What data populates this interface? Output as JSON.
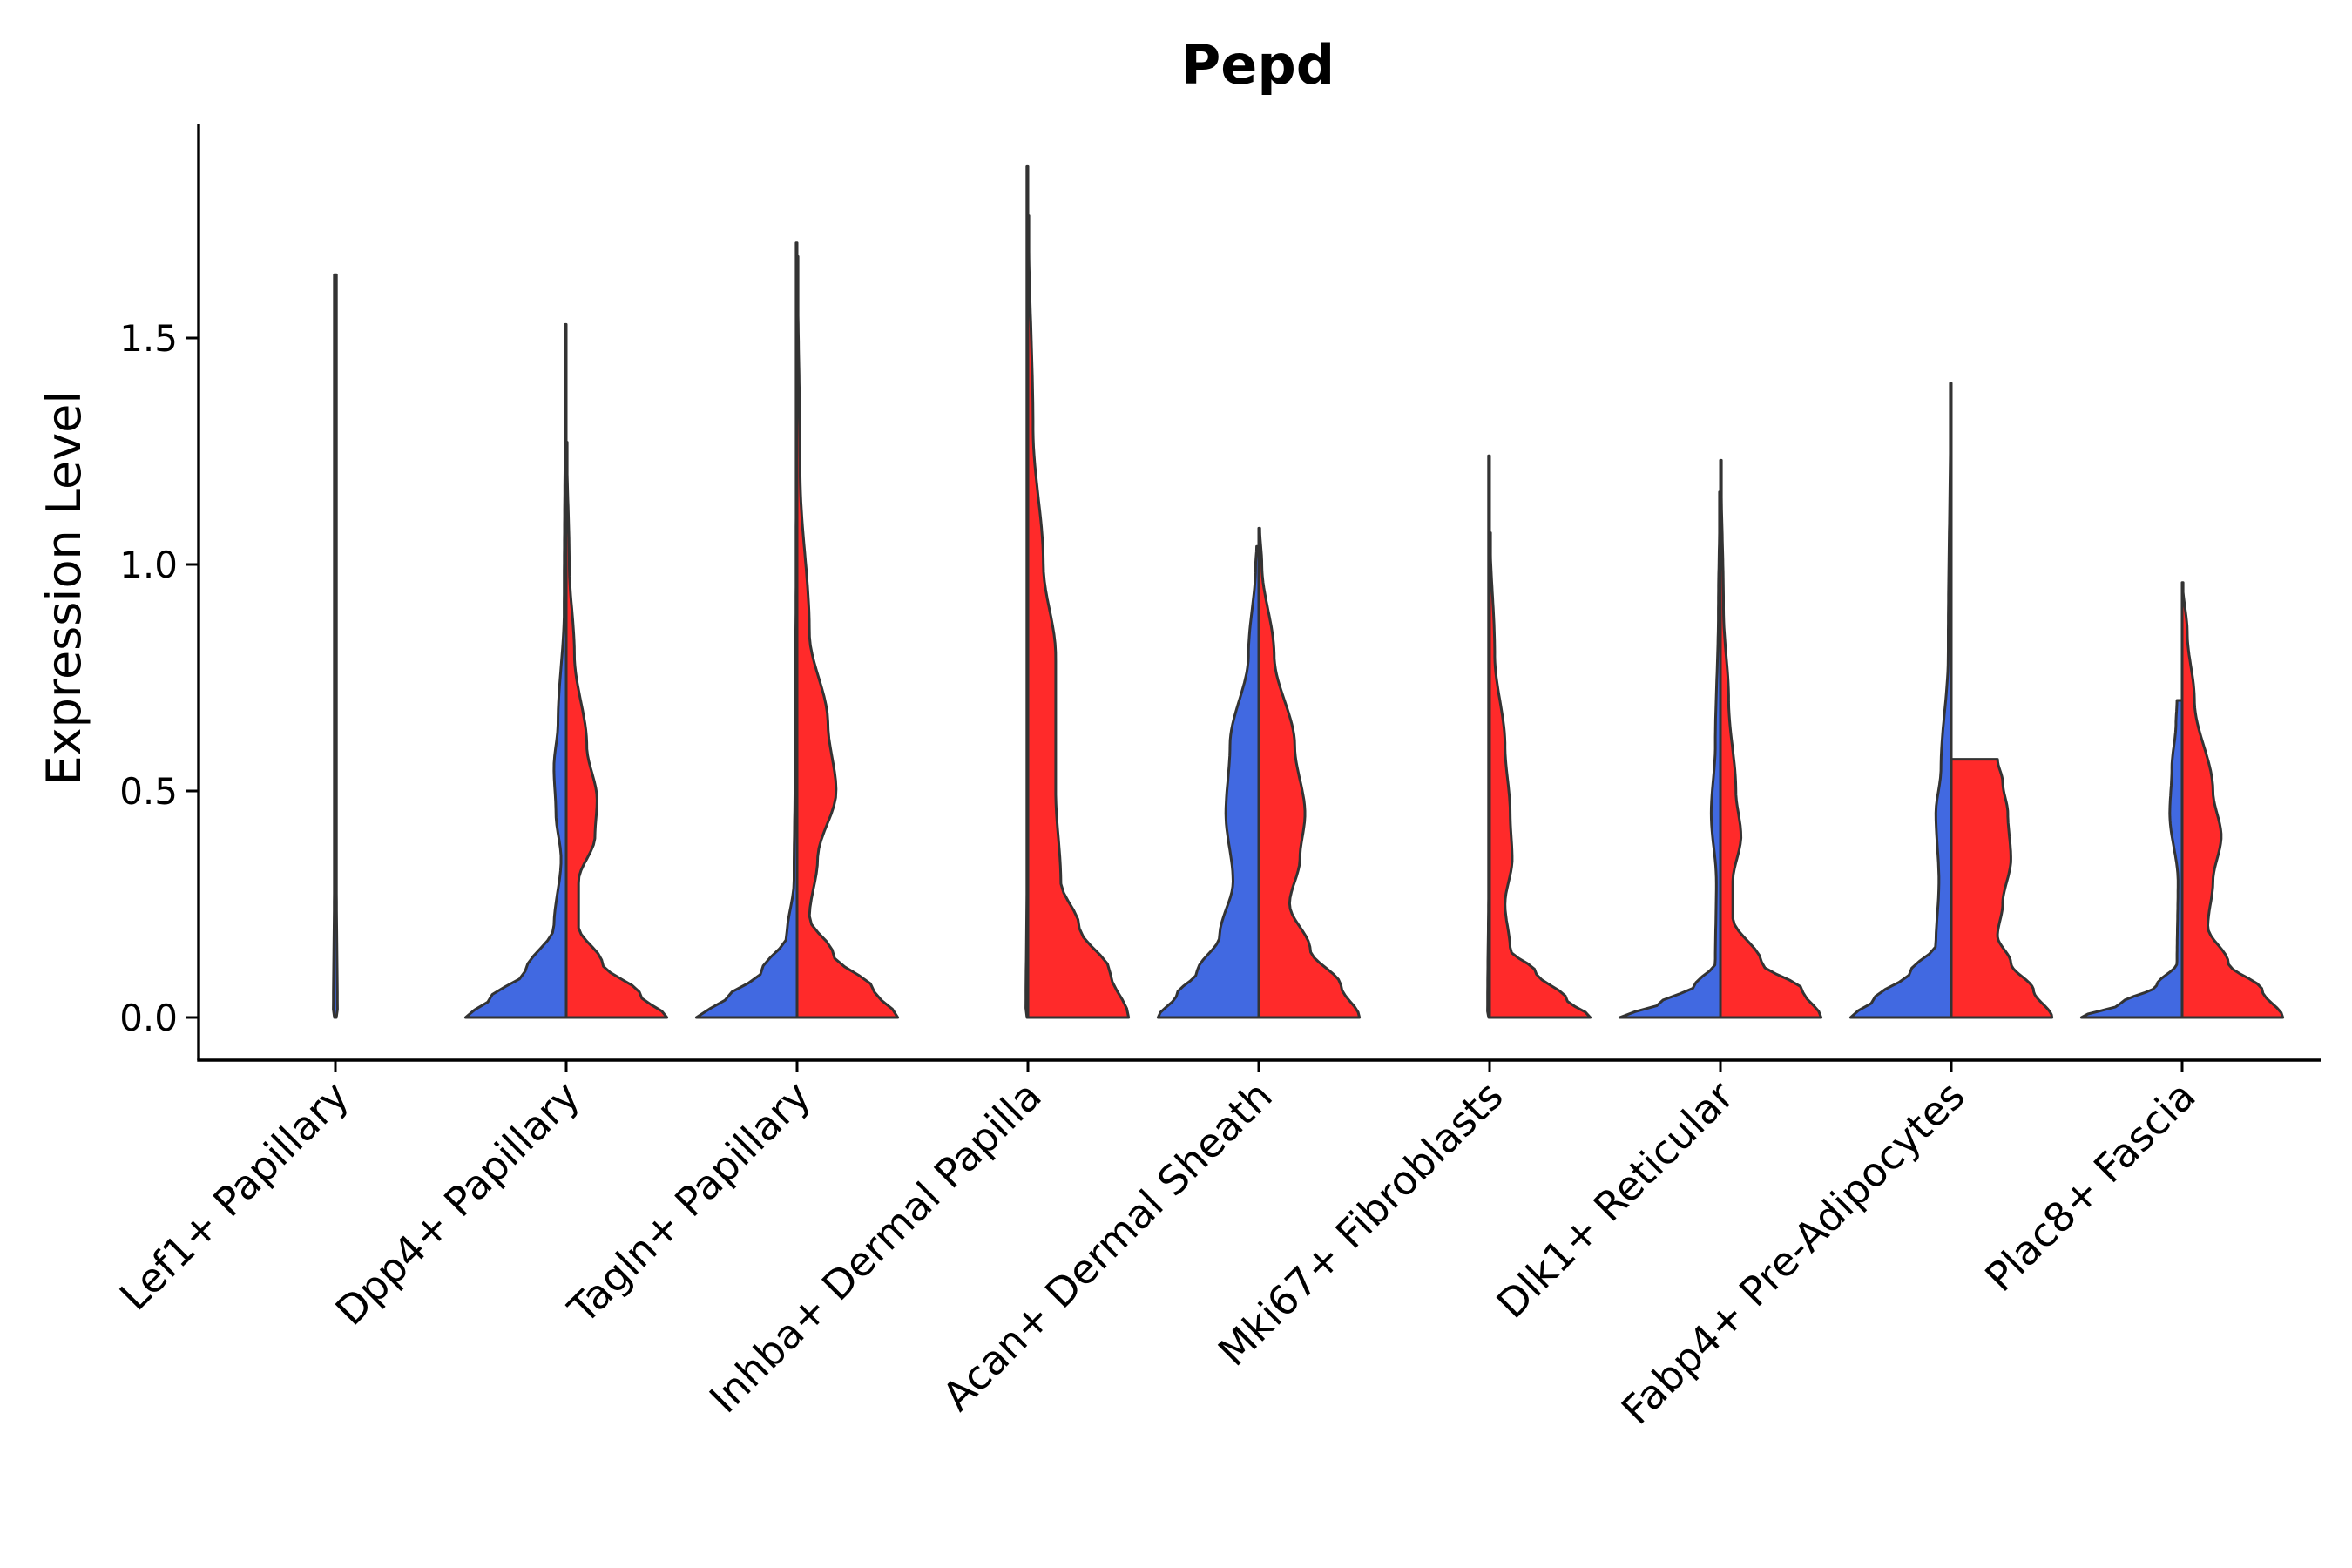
{
  "chart_data": {
    "type": "violin",
    "title": "Pepd",
    "xlabel": "",
    "ylabel": "Expression Level",
    "ylim": [
      -0.09,
      1.96
    ],
    "yticks": [
      0.0,
      0.5,
      1.0,
      1.5
    ],
    "ytick_labels": [
      "0.0",
      "0.5",
      "1.0",
      "1.5"
    ],
    "grid": false,
    "legend": "none",
    "colors": {
      "group1": "#4169e1",
      "group2": "#ff2a2a",
      "outline": "#333333"
    },
    "categories": [
      "Lef1+ Papillary",
      "Dpp4+ Papillary",
      "Tagln+ Papillary",
      "Inhba+ Dermal Papilla",
      "Acan+ Dermal Sheath",
      "Mki67+ Fibroblasts",
      "Dlk1+ Reticular",
      "Fabp4+ Pre-Adipocytes",
      "Plac8+ Fascia"
    ],
    "series": [
      {
        "name": "group1",
        "color": "#4169e1",
        "violins": [
          {
            "max": 1.64,
            "shape": [
              [
                0.0,
                0.0
              ],
              [
                0.001,
                1.0
              ],
              [
                0.005,
                0.3
              ],
              [
                0.01,
                0.02
              ],
              [
                0.3,
                0.01
              ],
              [
                1.64,
                0.01
              ]
            ]
          },
          {
            "max": 1.53,
            "shape": [
              [
                0.0,
                0.98
              ],
              [
                0.04,
                0.75
              ],
              [
                0.1,
                0.4
              ],
              [
                0.2,
                0.12
              ],
              [
                0.35,
                0.05
              ],
              [
                0.45,
                0.1
              ],
              [
                0.55,
                0.12
              ],
              [
                0.65,
                0.08
              ],
              [
                0.9,
                0.02
              ],
              [
                1.53,
                0.005
              ]
            ]
          },
          {
            "max": 1.71,
            "shape": [
              [
                0.0,
                0.98
              ],
              [
                0.04,
                0.7
              ],
              [
                0.1,
                0.35
              ],
              [
                0.18,
                0.1
              ],
              [
                0.3,
                0.03
              ],
              [
                0.55,
                0.02
              ],
              [
                1.0,
                0.01
              ],
              [
                1.71,
                0.005
              ]
            ]
          },
          {
            "max": 1.88,
            "shape": [
              [
                0.0,
                0.0
              ],
              [
                0.001,
                1.0
              ],
              [
                0.005,
                0.3
              ],
              [
                0.01,
                0.02
              ],
              [
                0.3,
                0.01
              ],
              [
                1.88,
                0.01
              ]
            ]
          },
          {
            "max": 1.04,
            "shape": [
              [
                0.0,
                0.98
              ],
              [
                0.05,
                0.8
              ],
              [
                0.1,
                0.6
              ],
              [
                0.18,
                0.38
              ],
              [
                0.3,
                0.25
              ],
              [
                0.45,
                0.32
              ],
              [
                0.6,
                0.28
              ],
              [
                0.8,
                0.1
              ],
              [
                1.0,
                0.03
              ],
              [
                1.04,
                0.02
              ]
            ]
          },
          {
            "max": 1.24,
            "shape": [
              [
                0.0,
                0.0
              ],
              [
                0.001,
                1.0
              ],
              [
                0.005,
                0.3
              ],
              [
                0.01,
                0.02
              ],
              [
                0.3,
                0.01
              ],
              [
                1.24,
                0.01
              ]
            ]
          },
          {
            "max": 1.16,
            "shape": [
              [
                0.0,
                0.98
              ],
              [
                0.03,
                0.6
              ],
              [
                0.07,
                0.25
              ],
              [
                0.12,
                0.05
              ],
              [
                0.3,
                0.04
              ],
              [
                0.45,
                0.09
              ],
              [
                0.6,
                0.05
              ],
              [
                0.9,
                0.02
              ],
              [
                1.16,
                0.005
              ]
            ]
          },
          {
            "max": 1.4,
            "shape": [
              [
                0.0,
                0.98
              ],
              [
                0.04,
                0.75
              ],
              [
                0.1,
                0.4
              ],
              [
                0.16,
                0.15
              ],
              [
                0.3,
                0.12
              ],
              [
                0.45,
                0.15
              ],
              [
                0.55,
                0.1
              ],
              [
                0.8,
                0.03
              ],
              [
                1.4,
                0.005
              ]
            ]
          },
          {
            "max": 0.7,
            "shape": [
              [
                0.0,
                0.98
              ],
              [
                0.03,
                0.6
              ],
              [
                0.07,
                0.25
              ],
              [
                0.12,
                0.05
              ],
              [
                0.3,
                0.04
              ],
              [
                0.45,
                0.12
              ],
              [
                0.55,
                0.1
              ],
              [
                0.65,
                0.06
              ],
              [
                0.7,
                0.05
              ]
            ]
          }
        ]
      },
      {
        "name": "group2",
        "color": "#ff2a2a",
        "violins": [
          null,
          {
            "max": 1.27,
            "shape": [
              [
                0.0,
                0.98
              ],
              [
                0.05,
                0.72
              ],
              [
                0.12,
                0.35
              ],
              [
                0.2,
                0.12
              ],
              [
                0.3,
                0.12
              ],
              [
                0.4,
                0.28
              ],
              [
                0.48,
                0.3
              ],
              [
                0.6,
                0.2
              ],
              [
                0.8,
                0.08
              ],
              [
                1.0,
                0.03
              ],
              [
                1.27,
                0.005
              ]
            ]
          },
          {
            "max": 1.68,
            "shape": [
              [
                0.0,
                0.98
              ],
              [
                0.06,
                0.75
              ],
              [
                0.14,
                0.35
              ],
              [
                0.22,
                0.12
              ],
              [
                0.35,
                0.2
              ],
              [
                0.5,
                0.38
              ],
              [
                0.65,
                0.3
              ],
              [
                0.85,
                0.12
              ],
              [
                1.2,
                0.03
              ],
              [
                1.68,
                0.005
              ]
            ]
          },
          {
            "max": 1.77,
            "shape": [
              [
                0.0,
                0.98
              ],
              [
                0.1,
                0.8
              ],
              [
                0.2,
                0.5
              ],
              [
                0.3,
                0.32
              ],
              [
                0.5,
                0.27
              ],
              [
                0.8,
                0.27
              ],
              [
                1.0,
                0.15
              ],
              [
                1.3,
                0.05
              ],
              [
                1.77,
                0.005
              ]
            ]
          },
          {
            "max": 1.08,
            "shape": [
              [
                0.0,
                0.98
              ],
              [
                0.07,
                0.8
              ],
              [
                0.15,
                0.5
              ],
              [
                0.25,
                0.3
              ],
              [
                0.35,
                0.4
              ],
              [
                0.45,
                0.45
              ],
              [
                0.6,
                0.35
              ],
              [
                0.8,
                0.15
              ],
              [
                1.0,
                0.03
              ],
              [
                1.08,
                0.01
              ]
            ]
          },
          {
            "max": 1.07,
            "shape": [
              [
                0.0,
                0.98
              ],
              [
                0.04,
                0.75
              ],
              [
                0.1,
                0.45
              ],
              [
                0.15,
                0.2
              ],
              [
                0.25,
                0.15
              ],
              [
                0.35,
                0.22
              ],
              [
                0.45,
                0.2
              ],
              [
                0.6,
                0.15
              ],
              [
                0.8,
                0.05
              ],
              [
                1.07,
                0.005
              ]
            ]
          },
          {
            "max": 1.23,
            "shape": [
              [
                0.0,
                0.98
              ],
              [
                0.06,
                0.8
              ],
              [
                0.12,
                0.4
              ],
              [
                0.22,
                0.12
              ],
              [
                0.3,
                0.12
              ],
              [
                0.4,
                0.2
              ],
              [
                0.5,
                0.15
              ],
              [
                0.7,
                0.08
              ],
              [
                0.9,
                0.03
              ],
              [
                1.23,
                0.005
              ]
            ]
          },
          {
            "max": 0.57,
            "shape": [
              [
                0.0,
                0.98
              ],
              [
                0.06,
                0.8
              ],
              [
                0.12,
                0.58
              ],
              [
                0.18,
                0.45
              ],
              [
                0.25,
                0.5
              ],
              [
                0.35,
                0.58
              ],
              [
                0.45,
                0.55
              ],
              [
                0.52,
                0.5
              ],
              [
                0.57,
                0.45
              ]
            ]
          },
          {
            "max": 0.96,
            "shape": [
              [
                0.0,
                0.98
              ],
              [
                0.06,
                0.78
              ],
              [
                0.12,
                0.45
              ],
              [
                0.2,
                0.25
              ],
              [
                0.3,
                0.3
              ],
              [
                0.4,
                0.38
              ],
              [
                0.5,
                0.3
              ],
              [
                0.7,
                0.12
              ],
              [
                0.85,
                0.05
              ],
              [
                0.96,
                0.005
              ]
            ]
          }
        ]
      }
    ]
  }
}
